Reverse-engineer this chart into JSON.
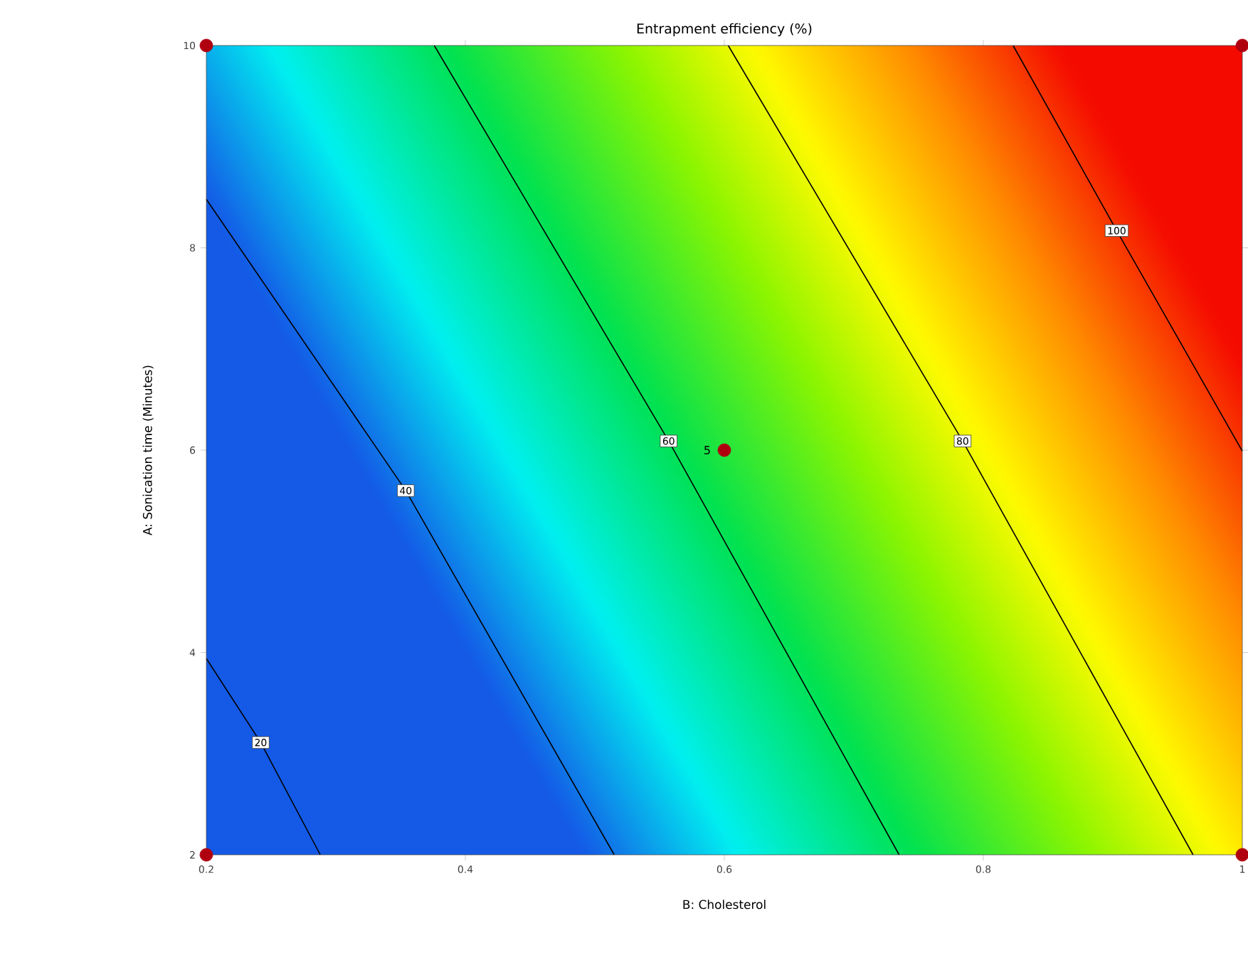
{
  "chart_data": {
    "type": "line",
    "title": "Entrapment efficiency (%)",
    "xlabel": "B: Cholesterol",
    "ylabel": "A: Sonication time (Minutes)",
    "xlim": [
      0.2,
      1
    ],
    "ylim": [
      2,
      10
    ],
    "xticks": [
      0.2,
      0.4,
      0.6,
      0.8,
      1
    ],
    "yticks": [
      2,
      4,
      6,
      8,
      10
    ],
    "series": [
      {
        "type": "line",
        "color": "#000000",
        "x": [
          0.2,
          0.242,
          0.288
        ],
        "values": [
          3.94,
          3.11,
          2
        ]
      },
      {
        "type": "line",
        "color": "#000000",
        "x": [
          0.2,
          0.354,
          0.515
        ],
        "values": [
          8.48,
          5.6,
          2
        ]
      },
      {
        "type": "line",
        "color": "#000000",
        "x": [
          0.376,
          0.557,
          0.735
        ],
        "values": [
          10,
          6.09,
          2
        ]
      },
      {
        "type": "line",
        "color": "#000000",
        "x": [
          0.603,
          0.784,
          0.962
        ],
        "values": [
          10,
          6.09,
          2
        ]
      },
      {
        "type": "line",
        "color": "#000000",
        "x": [
          0.823,
          0.903,
          1
        ],
        "values": [
          10,
          8.17,
          5.99
        ]
      },
      {
        "type": "scatter",
        "color": "#b00010",
        "x": [
          0.2,
          1,
          0.6,
          0.2,
          1
        ],
        "values": [
          10,
          10,
          6,
          2,
          2
        ]
      }
    ],
    "annotations": [
      {
        "text": "20",
        "x": 0.242,
        "y": 3.11
      },
      {
        "text": "40",
        "x": 0.354,
        "y": 5.6
      },
      {
        "text": "60",
        "x": 0.557,
        "y": 6.09
      },
      {
        "text": "80",
        "x": 0.784,
        "y": 6.09
      },
      {
        "text": "100",
        "x": 0.903,
        "y": 8.17
      },
      {
        "text": "5",
        "x": 0.6,
        "y": 6
      }
    ]
  }
}
